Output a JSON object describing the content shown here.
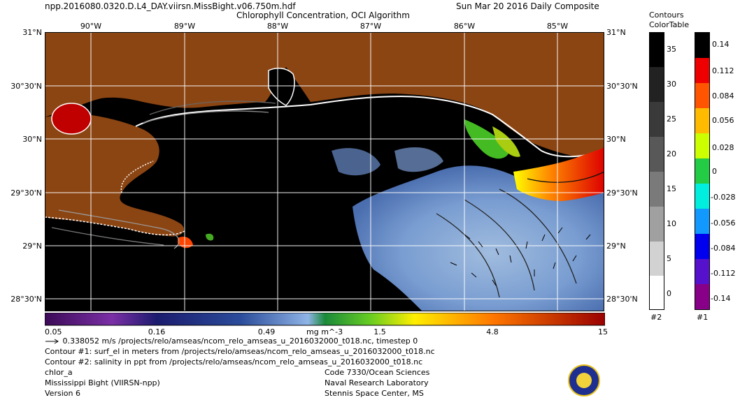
{
  "header": {
    "filename": "npp.2016080.0320.D.L4_DAY.viirsn.MissBight.v06.750m.hdf",
    "title": "Chlorophyll Concentration, OCI Algorithm",
    "date": "Sun Mar 20 2016 Daily Composite"
  },
  "map": {
    "lon_labels": [
      "90°W",
      "89°W",
      "88°W",
      "87°W",
      "86°W",
      "85°W"
    ],
    "lat_labels": [
      "31°N",
      "30°30'N",
      "30°N",
      "29°30'N",
      "29°N",
      "28°30'N"
    ],
    "colors": {
      "land": "#8b4513",
      "water": "#000000",
      "coast": "#ffffff",
      "grid": "#ffffff"
    }
  },
  "chl_scale": {
    "ticks": [
      "0.05",
      "0.16",
      "0.49",
      "1.5",
      "4.8",
      "15"
    ],
    "units": "mg m^-3"
  },
  "legend": {
    "contours_title": "Contours",
    "colortable_title": "ColorTable",
    "contour_ticks": [
      "35",
      "30",
      "25",
      "20",
      "15",
      "10",
      "5",
      "0"
    ],
    "colortable_ticks": [
      "0.14",
      "0.112",
      "0.084",
      "0.056",
      "0.028",
      "0",
      "-0.028",
      "-0.056",
      "-0.084",
      "-0.112",
      "-0.14"
    ],
    "contour_id": "#2",
    "colortable_id": "#1"
  },
  "footer": {
    "vector_line": "0.338052 m/s /projects/relo/amseas/ncom_relo_amseas_u_2016032000_t018.nc, timestep 0",
    "contour1": "Contour #1: surf_el in meters from /projects/relo/amseas/ncom_relo_amseas_u_2016032000_t018.nc",
    "contour2": "Contour #2: salinity in ppt from /projects/relo/amseas/ncom_relo_amseas_u_2016032000_t018.nc",
    "product": "chlor_a",
    "region": "Mississippi Bight (VIIRSN-npp)",
    "version": "Version 6",
    "org1": "Code 7330/Ocean Sciences",
    "org2": "Naval Research Laboratory",
    "org3": "Stennis Space Center, MS"
  }
}
